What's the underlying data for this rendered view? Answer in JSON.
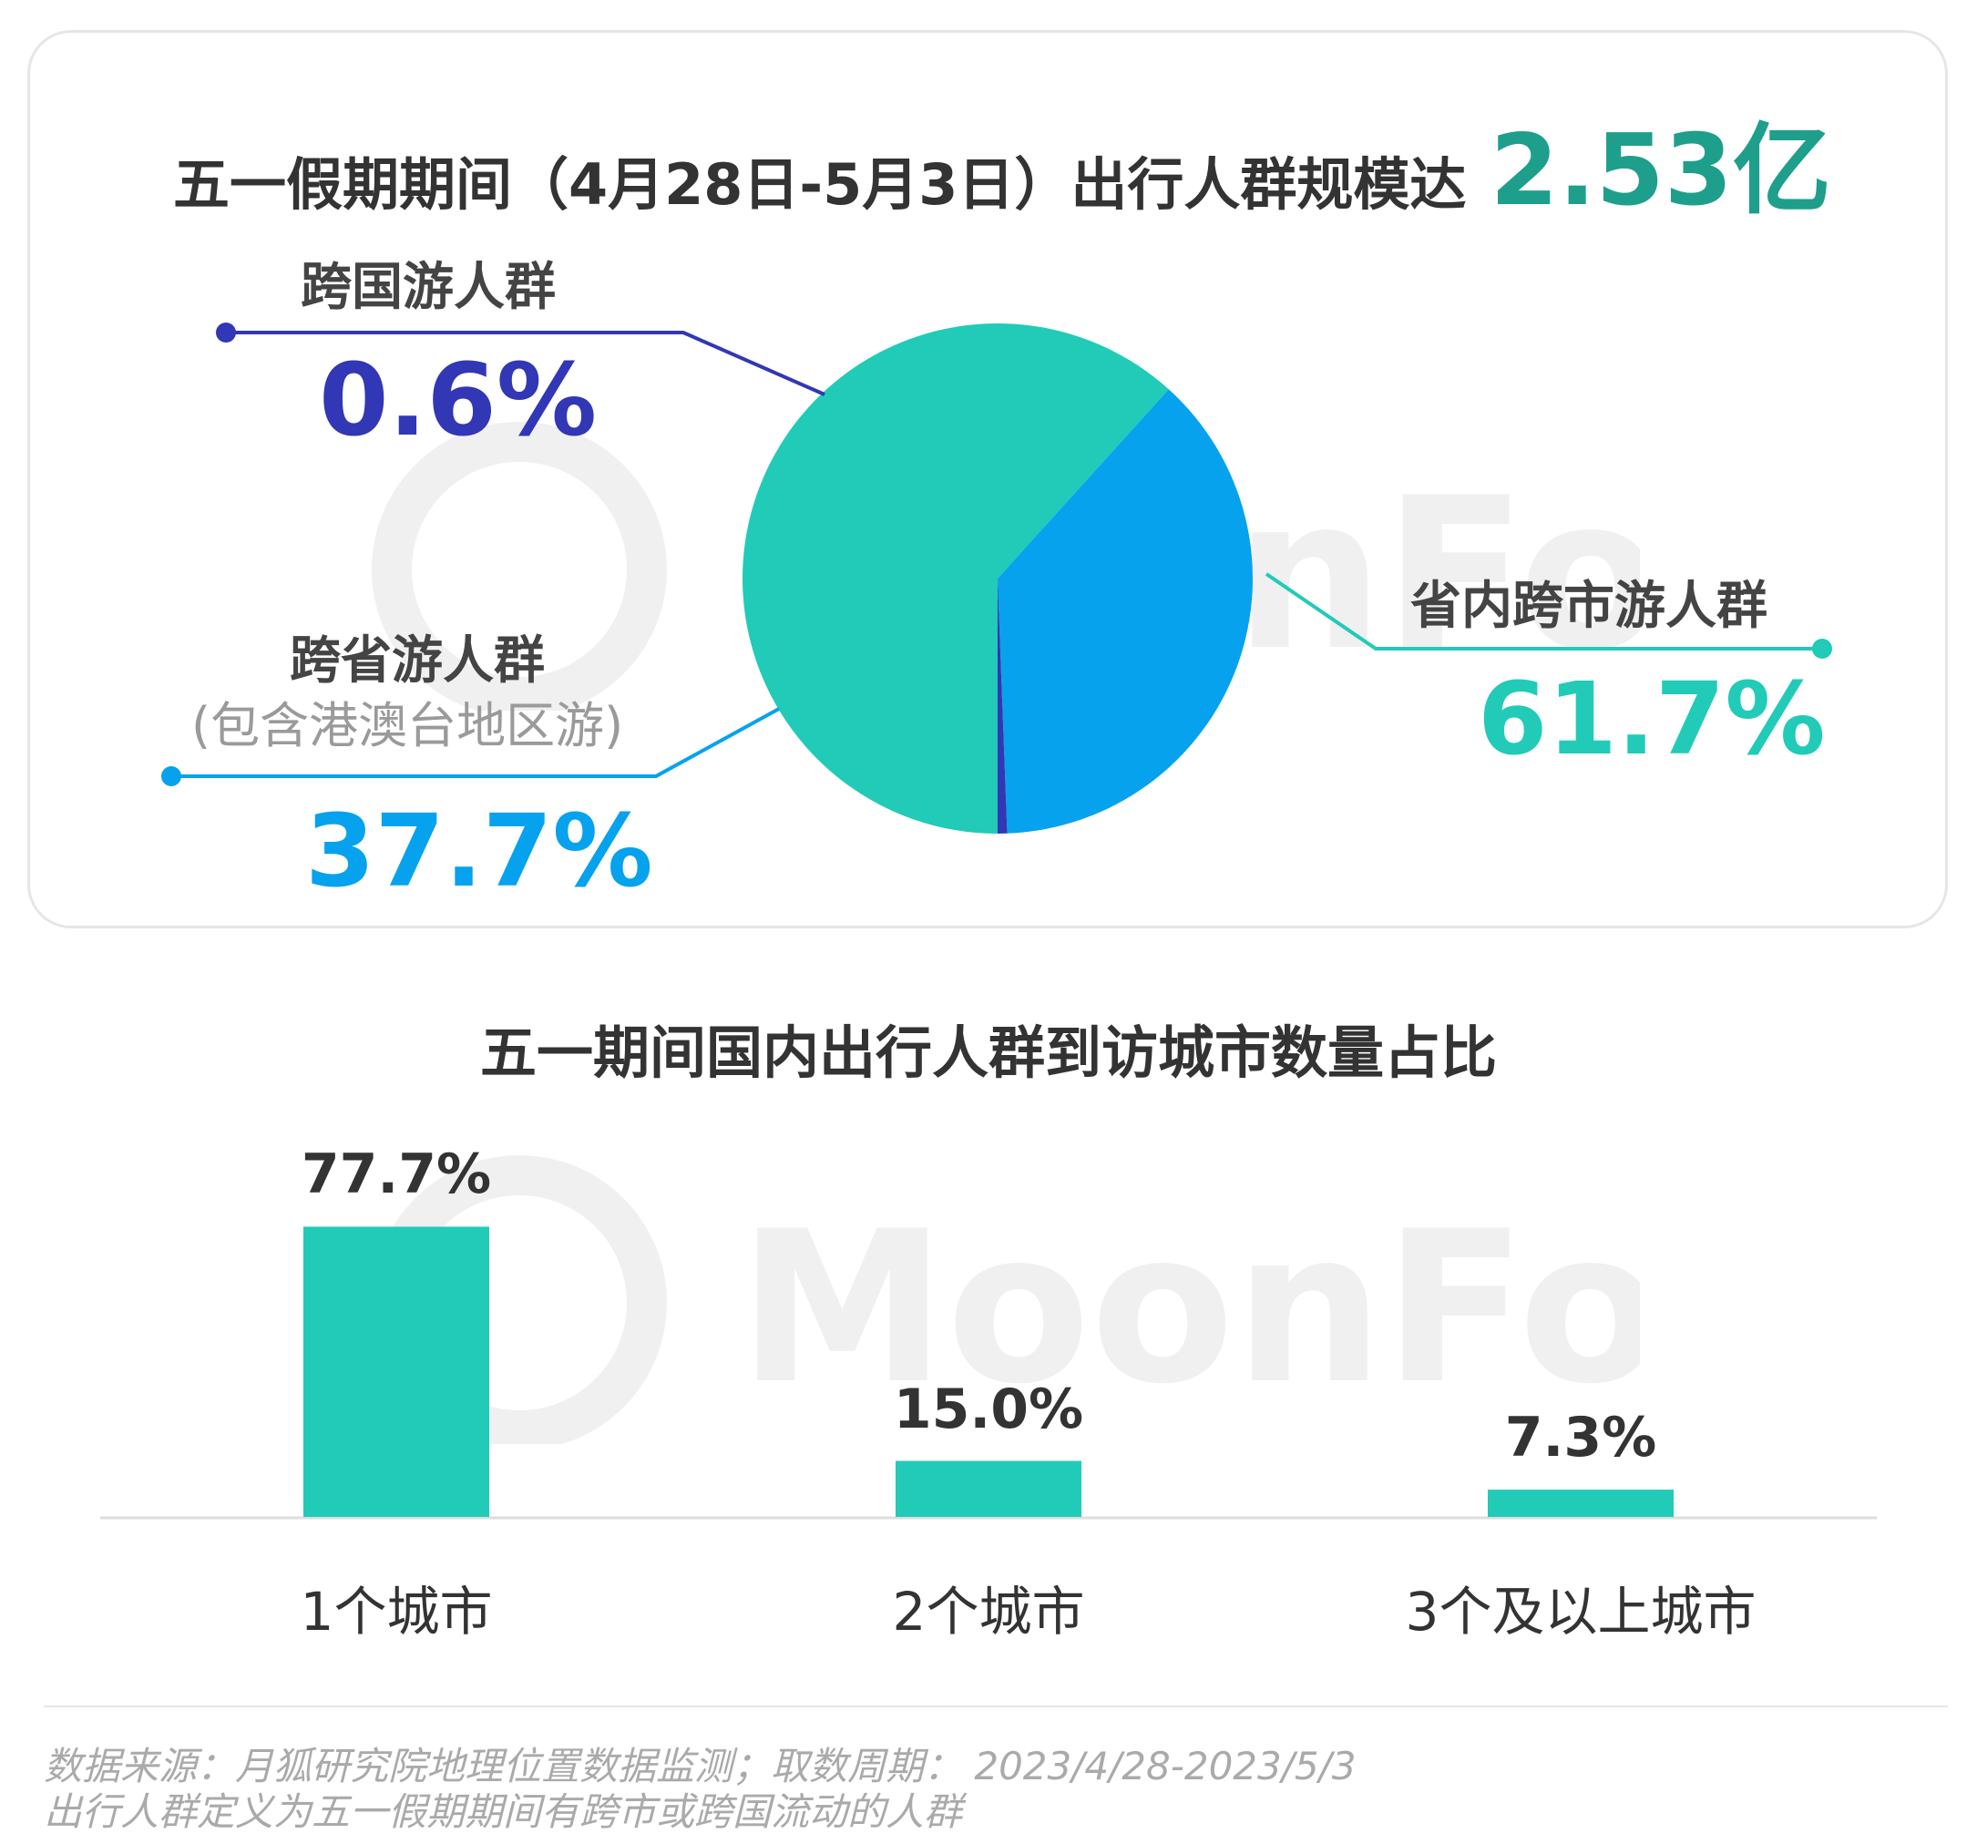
{
  "colors": {
    "domestic_intercity": "#21cbb8",
    "interprovincial": "#06a2ee",
    "international": "#3137b5",
    "accent": "#1e9f8c",
    "bar": "#21cbb8"
  },
  "top": {
    "title": "五一假期期间（4月28日-5月3日）出行人群规模达",
    "total": "2.53亿"
  },
  "watermark": "MoonFox",
  "chart_data": [
    {
      "type": "pie",
      "title": "五一假期期间（4月28日-5月3日）出行人群规模达 2.53亿",
      "slices": [
        {
          "label": "省内跨市游人群",
          "value": 61.7,
          "display": "61.7%",
          "color": "#21cbb8"
        },
        {
          "label": "跨省游人群",
          "sublabel": "(包含港澳台地区游)",
          "value": 37.7,
          "display": "37.7%",
          "color": "#06a2ee"
        },
        {
          "label": "跨国游人群",
          "value": 0.6,
          "display": "0.6%",
          "color": "#3137b5"
        }
      ]
    },
    {
      "type": "bar",
      "title": "五一期间国内出行人群到访城市数量占比",
      "categories": [
        "1个城市",
        "2个城市",
        "3个及以上城市"
      ],
      "values": [
        77.7,
        15.0,
        7.3
      ],
      "value_labels": [
        "77.7%",
        "15.0%",
        "7.3%"
      ],
      "ylim": [
        0,
        100
      ],
      "grid": false
    }
  ],
  "footnote": {
    "line1": "数据来源：月狐研究院地理位置数据监测；取数周期： 2023/4/28-2023/5/3",
    "line2": "出行人群定义为五一假期期间有跨市或跨国流动的人群"
  }
}
